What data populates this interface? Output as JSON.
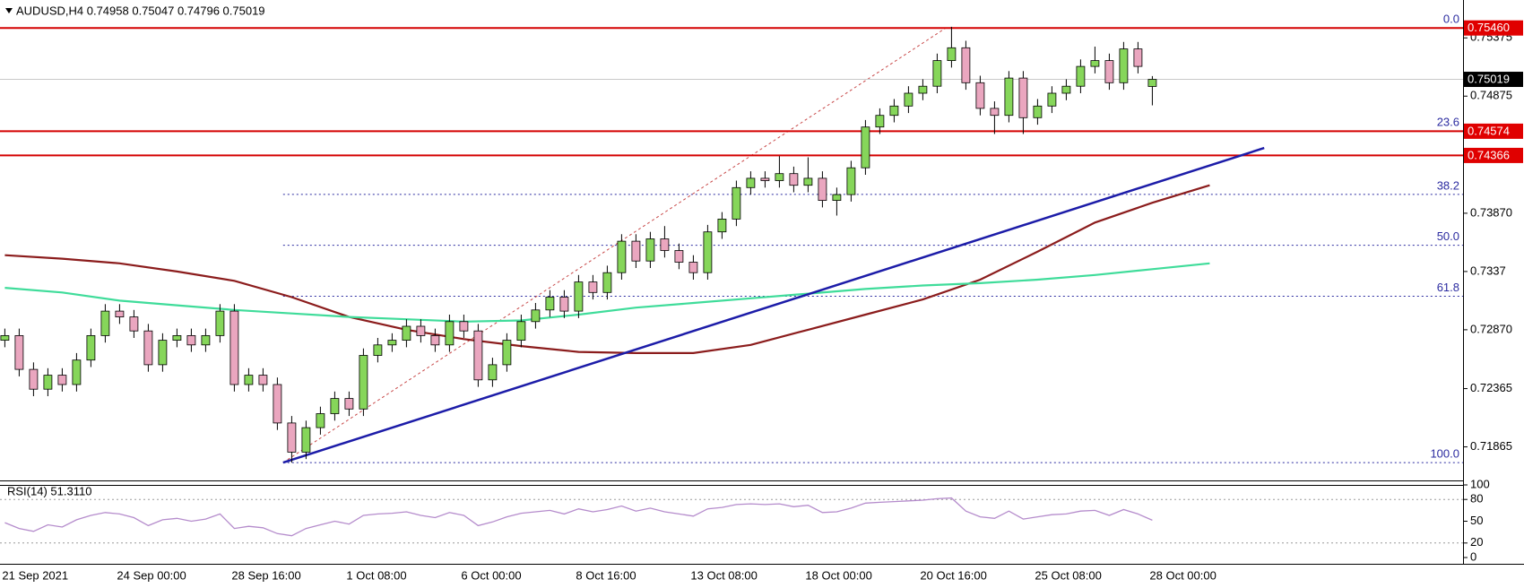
{
  "chart_data": {
    "type": "candlestick",
    "title": "AUDUSD,H4  0.74958 0.75047 0.74796 0.75019",
    "categories": [
      "21 Sep 2021",
      null,
      null,
      null,
      null,
      null,
      null,
      null,
      "24 Sep 00:00",
      null,
      null,
      null,
      null,
      null,
      null,
      null,
      "28 Sep 16:00",
      null,
      null,
      null,
      null,
      null,
      null,
      null,
      "1 Oct 08:00",
      null,
      null,
      null,
      null,
      null,
      null,
      null,
      "6 Oct 00:00",
      null,
      null,
      null,
      null,
      null,
      null,
      null,
      "8 Oct 16:00",
      null,
      null,
      null,
      null,
      null,
      null,
      null,
      "13 Oct 08:00",
      null,
      null,
      null,
      null,
      null,
      null,
      null,
      "18 Oct 00:00",
      null,
      null,
      null,
      null,
      null,
      null,
      null,
      "20 Oct 16:00",
      null,
      null,
      null,
      null,
      null,
      null,
      null,
      "25 Oct 08:00",
      null,
      null,
      null,
      null,
      null,
      null,
      null,
      "28 Oct 00:00"
    ],
    "ohlc": [
      [
        0.7278,
        0.7288,
        0.7272,
        0.7282
      ],
      [
        0.7282,
        0.7288,
        0.7247,
        0.7253
      ],
      [
        0.7253,
        0.7259,
        0.723,
        0.7236
      ],
      [
        0.7236,
        0.7254,
        0.723,
        0.7248
      ],
      [
        0.7248,
        0.7254,
        0.7234,
        0.724
      ],
      [
        0.724,
        0.7267,
        0.7234,
        0.7261
      ],
      [
        0.7261,
        0.7288,
        0.7255,
        0.7282
      ],
      [
        0.7282,
        0.7309,
        0.7276,
        0.7303
      ],
      [
        0.7303,
        0.7309,
        0.7292,
        0.7298
      ],
      [
        0.7298,
        0.7304,
        0.728,
        0.7286
      ],
      [
        0.7286,
        0.7292,
        0.7251,
        0.7257
      ],
      [
        0.7257,
        0.7284,
        0.7251,
        0.7278
      ],
      [
        0.7278,
        0.7288,
        0.7272,
        0.7282
      ],
      [
        0.7282,
        0.7288,
        0.7268,
        0.7274
      ],
      [
        0.7274,
        0.7288,
        0.7268,
        0.7282
      ],
      [
        0.7282,
        0.7309,
        0.7276,
        0.7303
      ],
      [
        0.7303,
        0.7309,
        0.7234,
        0.724
      ],
      [
        0.724,
        0.7254,
        0.7234,
        0.7248
      ],
      [
        0.7248,
        0.7254,
        0.7234,
        0.724
      ],
      [
        0.724,
        0.7246,
        0.7201,
        0.7207
      ],
      [
        0.7207,
        0.7213,
        0.7173,
        0.7182
      ],
      [
        0.7182,
        0.7209,
        0.7176,
        0.7203
      ],
      [
        0.7203,
        0.7221,
        0.7197,
        0.7215
      ],
      [
        0.7215,
        0.7234,
        0.7209,
        0.7228
      ],
      [
        0.7228,
        0.7234,
        0.7213,
        0.7219
      ],
      [
        0.7219,
        0.7271,
        0.7213,
        0.7265
      ],
      [
        0.7265,
        0.728,
        0.7259,
        0.7274
      ],
      [
        0.7274,
        0.7284,
        0.7268,
        0.7278
      ],
      [
        0.7278,
        0.7296,
        0.7272,
        0.729
      ],
      [
        0.729,
        0.7296,
        0.7276,
        0.7282
      ],
      [
        0.7282,
        0.7288,
        0.7268,
        0.7274
      ],
      [
        0.7274,
        0.73,
        0.7268,
        0.7294
      ],
      [
        0.7294,
        0.73,
        0.728,
        0.7286
      ],
      [
        0.7286,
        0.7292,
        0.7238,
        0.7244
      ],
      [
        0.7244,
        0.7263,
        0.7238,
        0.7257
      ],
      [
        0.7257,
        0.7284,
        0.7251,
        0.7278
      ],
      [
        0.7278,
        0.73,
        0.7272,
        0.7294
      ],
      [
        0.7294,
        0.731,
        0.7288,
        0.7304
      ],
      [
        0.7304,
        0.7321,
        0.7298,
        0.7315
      ],
      [
        0.7315,
        0.7321,
        0.7297,
        0.7303
      ],
      [
        0.7303,
        0.7334,
        0.7297,
        0.7328
      ],
      [
        0.7328,
        0.7334,
        0.7313,
        0.7319
      ],
      [
        0.7319,
        0.7342,
        0.7313,
        0.7336
      ],
      [
        0.7336,
        0.7369,
        0.733,
        0.7363
      ],
      [
        0.7363,
        0.7369,
        0.734,
        0.7346
      ],
      [
        0.7346,
        0.7371,
        0.734,
        0.7365
      ],
      [
        0.7365,
        0.7376,
        0.7349,
        0.7355
      ],
      [
        0.7355,
        0.7361,
        0.7339,
        0.7345
      ],
      [
        0.7345,
        0.7351,
        0.733,
        0.7336
      ],
      [
        0.7336,
        0.7377,
        0.733,
        0.7371
      ],
      [
        0.7371,
        0.7388,
        0.7365,
        0.7382
      ],
      [
        0.7382,
        0.7415,
        0.7376,
        0.7409
      ],
      [
        0.7409,
        0.7423,
        0.7403,
        0.7417
      ],
      [
        0.7417,
        0.7423,
        0.7409,
        0.7415
      ],
      [
        0.7415,
        0.7436,
        0.7409,
        0.7421
      ],
      [
        0.7421,
        0.7427,
        0.7405,
        0.7411
      ],
      [
        0.7411,
        0.7435,
        0.7405,
        0.7417
      ],
      [
        0.7417,
        0.7423,
        0.7392,
        0.7398
      ],
      [
        0.7398,
        0.7409,
        0.7385,
        0.7403
      ],
      [
        0.7403,
        0.7432,
        0.7397,
        0.7426
      ],
      [
        0.7426,
        0.7467,
        0.742,
        0.7461
      ],
      [
        0.7461,
        0.7477,
        0.7455,
        0.7471
      ],
      [
        0.7471,
        0.7485,
        0.7465,
        0.7479
      ],
      [
        0.7479,
        0.7496,
        0.7473,
        0.749
      ],
      [
        0.749,
        0.7502,
        0.7484,
        0.7496
      ],
      [
        0.7496,
        0.7524,
        0.749,
        0.7518
      ],
      [
        0.7518,
        0.7547,
        0.7512,
        0.7529
      ],
      [
        0.7529,
        0.7535,
        0.7493,
        0.7499
      ],
      [
        0.7499,
        0.7505,
        0.7471,
        0.7477
      ],
      [
        0.7477,
        0.7483,
        0.7455,
        0.7471
      ],
      [
        0.7471,
        0.7509,
        0.7465,
        0.7503
      ],
      [
        0.7503,
        0.7509,
        0.7455,
        0.7469
      ],
      [
        0.7469,
        0.7485,
        0.7463,
        0.7479
      ],
      [
        0.7479,
        0.7496,
        0.7473,
        0.749
      ],
      [
        0.749,
        0.7502,
        0.7484,
        0.7496
      ],
      [
        0.7496,
        0.7519,
        0.749,
        0.7513
      ],
      [
        0.7513,
        0.753,
        0.7507,
        0.7518
      ],
      [
        0.7518,
        0.7524,
        0.7493,
        0.7499
      ],
      [
        0.7499,
        0.7534,
        0.7493,
        0.7528
      ],
      [
        0.7528,
        0.7534,
        0.7507,
        0.7513
      ],
      [
        0.74958,
        0.75047,
        0.74796,
        0.75019
      ]
    ],
    "bull_color": "#86d65a",
    "bear_color": "#eaa6bf",
    "ylim": [
      0.716,
      0.757
    ],
    "yticks": [
      0.71865,
      0.72365,
      {
        "value": 0.7287,
        "label": "0.72870"
      },
      0.7337,
      {
        "value": 0.7387,
        "label": "0.73870"
      },
      0.74875,
      0.75375
    ],
    "levels": [
      {
        "value": 0.7546,
        "label": "0.75460",
        "line_color": "#d40000",
        "box_color": "#e00000"
      },
      {
        "value": 0.74574,
        "label": "0.74574",
        "line_color": "#d40000",
        "box_color": "#e00000"
      },
      {
        "value": 0.74366,
        "label": "0.74366",
        "line_color": "#d40000",
        "box_color": "#e00000"
      },
      {
        "value": 0.75019,
        "label": "0.75019",
        "line_color": "#c8c8c8",
        "box_color": "#000000"
      }
    ],
    "moving_averages": [
      {
        "color": "#8b1c1c",
        "x": [
          0,
          4,
          8,
          12,
          16,
          20,
          24,
          28,
          32,
          36,
          40,
          44,
          48,
          52,
          56,
          60,
          64,
          68,
          72,
          76,
          80,
          84
        ],
        "values": [
          0.7351,
          0.7348,
          0.7344,
          0.7337,
          0.7329,
          0.7315,
          0.7298,
          0.7287,
          0.7279,
          0.7273,
          0.7268,
          0.7267,
          0.7267,
          0.7274,
          0.7287,
          0.73,
          0.7313,
          0.733,
          0.7354,
          0.7379,
          0.7396,
          0.7411
        ]
      },
      {
        "color": "#3fdc9a",
        "x": [
          0,
          4,
          8,
          12,
          16,
          20,
          24,
          28,
          32,
          36,
          40,
          44,
          48,
          52,
          56,
          60,
          64,
          68,
          72,
          76,
          80,
          84
        ],
        "values": [
          0.7323,
          0.7319,
          0.7312,
          0.7308,
          0.7304,
          0.7301,
          0.7298,
          0.7296,
          0.7294,
          0.7295,
          0.73,
          0.7306,
          0.731,
          0.7314,
          0.7318,
          0.7322,
          0.7325,
          0.7327,
          0.733,
          0.7334,
          0.7339,
          0.7344
        ]
      }
    ],
    "trendline": {
      "color": "#1c1ca8",
      "x": [
        19.4,
        87.8
      ],
      "values": [
        0.7173,
        0.7443
      ]
    },
    "fib": {
      "color": "#2b2ba0",
      "line_color": "#c84848",
      "x": [
        19.4,
        65.6
      ],
      "values": [
        0.7173,
        0.7546
      ],
      "levels": [
        {
          "value": 0.7546,
          "label": "0.0"
        },
        {
          "value": 0.74577,
          "label": "23.6"
        },
        {
          "value": 0.74032,
          "label": "38.2"
        },
        {
          "value": 0.73595,
          "label": "50.0"
        },
        {
          "value": 0.73158,
          "label": "61.8"
        },
        {
          "value": 0.7173,
          "label": "100.0"
        }
      ]
    },
    "rsi": {
      "title": "RSI(14) 51.3110",
      "color": "#b58ccc",
      "ylim": [
        0,
        100
      ],
      "yticks": [
        0,
        20,
        50,
        80,
        100
      ],
      "levels": [
        20,
        80
      ],
      "values": [
        48,
        40,
        36,
        45,
        42,
        52,
        58,
        62,
        60,
        55,
        44,
        52,
        54,
        50,
        53,
        60,
        40,
        43,
        41,
        33,
        30,
        40,
        45,
        50,
        46,
        58,
        60,
        61,
        63,
        58,
        55,
        62,
        58,
        44,
        49,
        56,
        61,
        63,
        65,
        60,
        67,
        63,
        66,
        71,
        64,
        68,
        63,
        60,
        57,
        67,
        69,
        73,
        74,
        73,
        74,
        70,
        72,
        62,
        63,
        68,
        75,
        76,
        77,
        78,
        79,
        81,
        82,
        64,
        56,
        54,
        64,
        53,
        56,
        59,
        60,
        64,
        65,
        58,
        66,
        60,
        51.311
      ]
    }
  }
}
